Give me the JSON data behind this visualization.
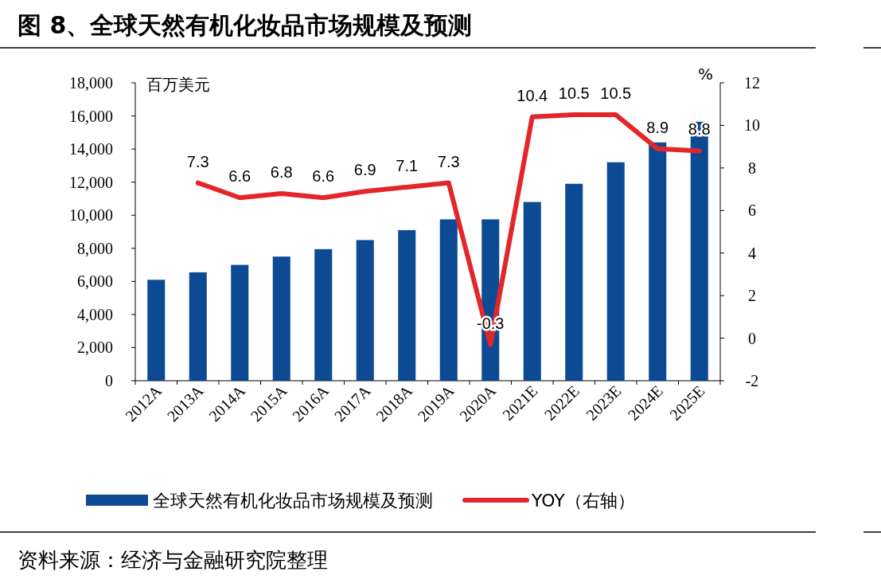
{
  "chart_data": {
    "type": "bar",
    "title": "图 8、全球天然有机化妆品市场规模及预测",
    "ylabel": "百万美元",
    "y2label": "%",
    "categories": [
      "2012A",
      "2013A",
      "2014A",
      "2015A",
      "2016A",
      "2017A",
      "2018A",
      "2019A",
      "2020A",
      "2021E",
      "2022E",
      "2023E",
      "2024E",
      "2025E"
    ],
    "series": [
      {
        "name": "全球天然有机化妆品市场规模及预测",
        "color": "#0c4a93",
        "values": [
          6100,
          6550,
          7000,
          7500,
          7950,
          8500,
          9100,
          9750,
          9750,
          10800,
          11900,
          13200,
          14400,
          15650
        ]
      },
      {
        "name": "YOY（右轴）",
        "type": "line",
        "axis": "y2",
        "color": "#e3262a",
        "values": [
          null,
          7.3,
          6.6,
          6.8,
          6.6,
          6.9,
          7.1,
          7.3,
          -0.3,
          10.4,
          10.5,
          10.5,
          8.9,
          8.8
        ],
        "value_labels": [
          null,
          "7.3",
          "6.6",
          "6.8",
          "6.6",
          "6.9",
          "7.1",
          "7.3",
          "-0.3",
          "10.4",
          "10.5",
          "10.5",
          "8.9",
          "8.8"
        ]
      }
    ],
    "ylim": [
      0,
      18000
    ],
    "yticks": [
      {
        "value": 0,
        "label": "0"
      },
      {
        "value": 2000,
        "label": "2,000"
      },
      {
        "value": 4000,
        "label": "4,000"
      },
      {
        "value": 6000,
        "label": "6,000"
      },
      {
        "value": 8000,
        "label": "8,000"
      },
      {
        "value": 10000,
        "label": "10,000"
      },
      {
        "value": 12000,
        "label": "12,000"
      },
      {
        "value": 14000,
        "label": "14,000"
      },
      {
        "value": 16000,
        "label": "16,000"
      },
      {
        "value": 18000,
        "label": "18,000"
      }
    ],
    "y2lim": [
      -2,
      12
    ],
    "y2ticks": [
      -2,
      0,
      2,
      4,
      6,
      8,
      10,
      12
    ],
    "legend": "bottom",
    "grid": false,
    "annotations": [
      "资料来源：经济与金融研究院整理"
    ]
  }
}
